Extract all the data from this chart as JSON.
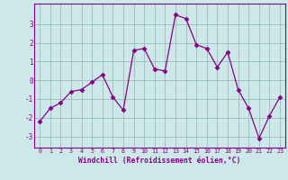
{
  "x": [
    0,
    1,
    2,
    3,
    4,
    5,
    6,
    7,
    8,
    9,
    10,
    11,
    12,
    13,
    14,
    15,
    16,
    17,
    18,
    19,
    20,
    21,
    22,
    23
  ],
  "y": [
    -2.2,
    -1.5,
    -1.2,
    -0.6,
    -0.5,
    -0.1,
    0.3,
    -0.9,
    -1.6,
    1.6,
    1.7,
    0.6,
    0.5,
    3.5,
    3.3,
    1.9,
    1.7,
    0.7,
    1.5,
    -0.5,
    -1.5,
    -3.1,
    -1.9,
    -0.9
  ],
  "line_color": "#880088",
  "marker_color": "#880088",
  "bg_color": "#cce8e8",
  "grid_color": "#99bbbb",
  "axis_color": "#880088",
  "xlabel": "Windchill (Refroidissement éolien,°C)",
  "ylim": [
    -3.6,
    4.1
  ],
  "xlim": [
    -0.5,
    23.5
  ],
  "yticks": [
    -3,
    -2,
    -1,
    0,
    1,
    2,
    3
  ],
  "xticks": [
    0,
    1,
    2,
    3,
    4,
    5,
    6,
    7,
    8,
    9,
    10,
    11,
    12,
    13,
    14,
    15,
    16,
    17,
    18,
    19,
    20,
    21,
    22,
    23
  ]
}
